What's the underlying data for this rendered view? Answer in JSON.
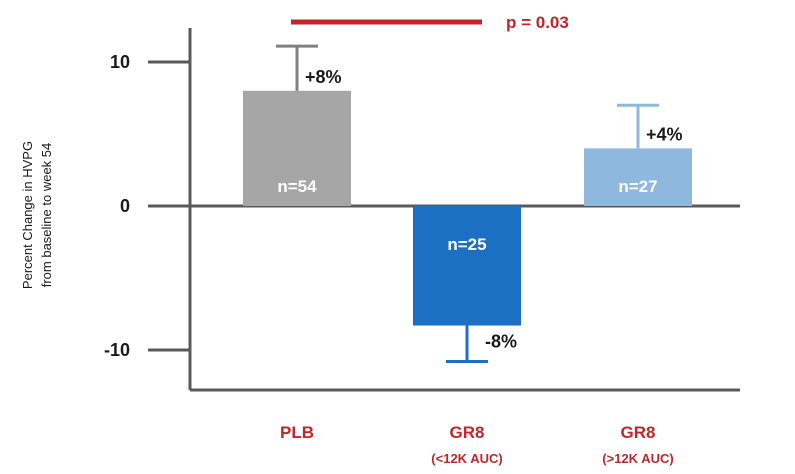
{
  "chart_data": {
    "type": "bar",
    "ylabel_lines": [
      "Percent Change in HVPG",
      "from baseline to week 54"
    ],
    "xlabel": "",
    "ylim": [
      -13,
      14
    ],
    "yticks": [
      10,
      0,
      -10
    ],
    "grid": false,
    "categories": [
      {
        "label": "PLB",
        "sublabel": ""
      },
      {
        "label": "GR8",
        "sublabel": "(<12K AUC)"
      },
      {
        "label": "GR8",
        "sublabel": "(>12K AUC)"
      }
    ],
    "series": [
      {
        "values": [
          8,
          -8.3,
          4
        ],
        "error_upper": [
          3.1,
          2.5,
          3
        ],
        "value_labels": [
          "+8%",
          "-8%",
          "+4%"
        ],
        "n_labels": [
          "n=54",
          "n=25",
          "n=27"
        ],
        "colors": [
          "#a6a6a6",
          "#1d6fc4",
          "#8fb8de"
        ],
        "error_colors": [
          "#808080",
          "#1d6fc4",
          "#8fb8de"
        ]
      }
    ],
    "significance": {
      "label": "p = 0.03",
      "from_category": 0,
      "to_category": 1
    },
    "colors": {
      "axis": "#595959",
      "category_label": "#c0272d",
      "significance": "#c0272d"
    }
  }
}
